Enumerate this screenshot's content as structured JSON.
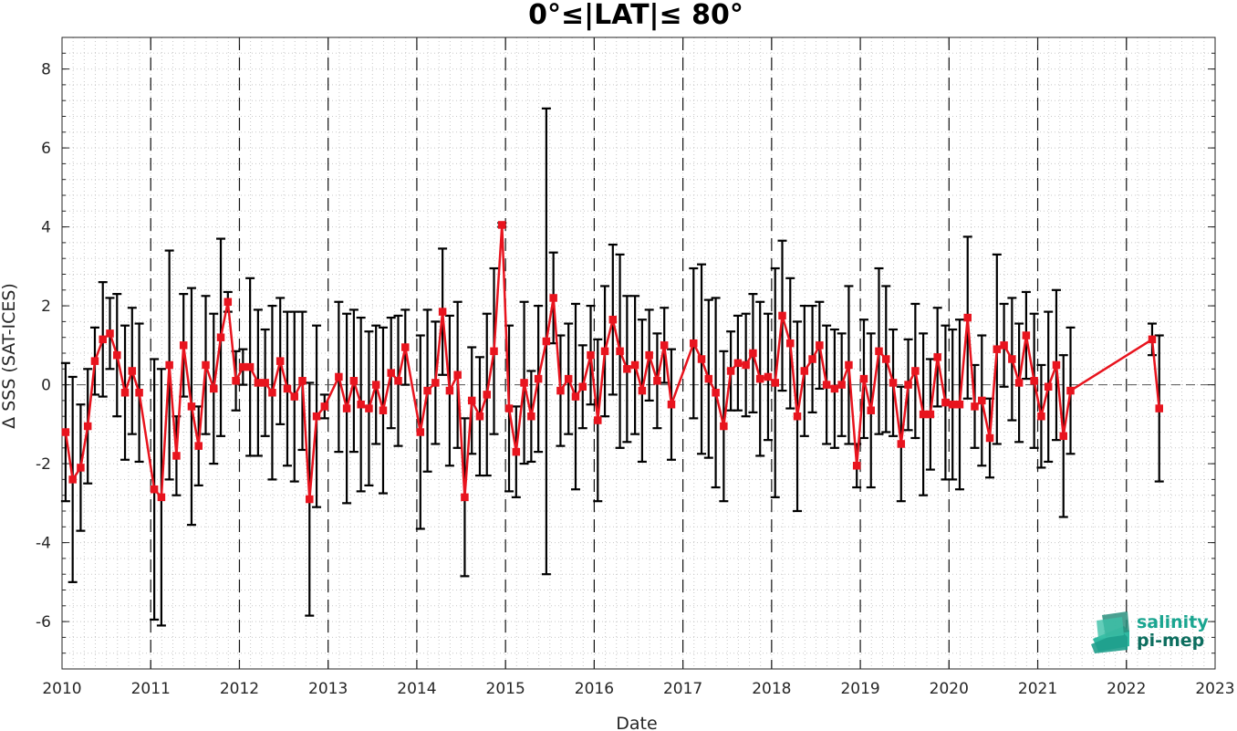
{
  "chart_data": {
    "type": "line",
    "title": "0°≤|LAT|≤ 80°",
    "xlabel": "Date",
    "ylabel": "Δ SSS (SAT-ICES)",
    "xlim": [
      2010,
      2023
    ],
    "ylim": [
      -7.2,
      8.8
    ],
    "xticks": [
      "2010",
      "2011",
      "2012",
      "2013",
      "2014",
      "2015",
      "2016",
      "2017",
      "2018",
      "2019",
      "2020",
      "2021",
      "2022",
      "2023"
    ],
    "yticks": [
      "-6",
      "-4",
      "-2",
      "0",
      "2",
      "4",
      "6",
      "8"
    ],
    "grid": "minor dotted",
    "reference_line": 0,
    "year_separators": "dashed vertical at each year",
    "series": [
      {
        "color": "#e8141e",
        "marker": "square",
        "error_bar_color": "#000000",
        "x": [
          2010.04,
          2010.12,
          2010.21,
          2010.29,
          2010.37,
          2010.46,
          2010.54,
          2010.62,
          2010.71,
          2010.79,
          2010.87,
          2011.04,
          2011.12,
          2011.21,
          2011.29,
          2011.37,
          2011.46,
          2011.54,
          2011.62,
          2011.71,
          2011.79,
          2011.87,
          2011.96,
          2012.04,
          2012.12,
          2012.21,
          2012.29,
          2012.37,
          2012.46,
          2012.54,
          2012.62,
          2012.71,
          2012.79,
          2012.87,
          2012.96,
          2013.12,
          2013.21,
          2013.29,
          2013.37,
          2013.46,
          2013.54,
          2013.62,
          2013.71,
          2013.79,
          2013.87,
          2014.04,
          2014.12,
          2014.21,
          2014.29,
          2014.37,
          2014.46,
          2014.54,
          2014.62,
          2014.71,
          2014.79,
          2014.87,
          2014.96,
          2015.04,
          2015.12,
          2015.21,
          2015.29,
          2015.37,
          2015.46,
          2015.54,
          2015.62,
          2015.71,
          2015.79,
          2015.87,
          2015.96,
          2016.04,
          2016.12,
          2016.21,
          2016.29,
          2016.37,
          2016.46,
          2016.54,
          2016.62,
          2016.71,
          2016.79,
          2016.87,
          2017.12,
          2017.21,
          2017.29,
          2017.37,
          2017.46,
          2017.54,
          2017.62,
          2017.71,
          2017.79,
          2017.87,
          2017.96,
          2018.04,
          2018.12,
          2018.21,
          2018.29,
          2018.37,
          2018.46,
          2018.54,
          2018.62,
          2018.71,
          2018.79,
          2018.87,
          2018.96,
          2019.04,
          2019.12,
          2019.21,
          2019.29,
          2019.37,
          2019.46,
          2019.54,
          2019.62,
          2019.71,
          2019.79,
          2019.87,
          2019.96,
          2020.04,
          2020.12,
          2020.21,
          2020.29,
          2020.37,
          2020.46,
          2020.54,
          2020.62,
          2020.71,
          2020.79,
          2020.87,
          2020.96,
          2021.04,
          2021.12,
          2021.21,
          2021.29,
          2021.37,
          2022.29,
          2022.37
        ],
        "y": [
          -1.2,
          -2.4,
          -2.1,
          -1.05,
          0.6,
          1.15,
          1.3,
          0.75,
          -0.2,
          0.35,
          -0.2,
          -2.65,
          -2.85,
          0.5,
          -1.8,
          1.0,
          -0.55,
          -1.55,
          0.5,
          -0.1,
          1.2,
          2.1,
          0.1,
          0.45,
          0.45,
          0.05,
          0.05,
          -0.2,
          0.6,
          -0.1,
          -0.3,
          0.1,
          -2.9,
          -0.8,
          -0.55,
          0.2,
          -0.6,
          0.1,
          -0.5,
          -0.6,
          0.0,
          -0.65,
          0.3,
          0.1,
          0.95,
          -1.2,
          -0.15,
          0.05,
          1.85,
          -0.15,
          0.25,
          -2.85,
          -0.4,
          -0.8,
          -0.25,
          0.85,
          4.05,
          -0.6,
          -1.7,
          0.05,
          -0.8,
          0.15,
          1.1,
          2.2,
          -0.15,
          0.15,
          -0.3,
          -0.05,
          0.75,
          -0.9,
          0.85,
          1.65,
          0.85,
          0.4,
          0.5,
          -0.15,
          0.75,
          0.1,
          1.0,
          -0.5,
          1.05,
          0.65,
          0.15,
          -0.2,
          -1.05,
          0.35,
          0.55,
          0.5,
          0.8,
          0.15,
          0.2,
          0.05,
          1.75,
          1.05,
          -0.8,
          0.35,
          0.65,
          1.0,
          0.0,
          -0.1,
          0.0,
          0.5,
          -2.05,
          0.15,
          -0.65,
          0.85,
          0.65,
          0.05,
          -1.5,
          0.0,
          0.35,
          -0.75,
          -0.75,
          0.7,
          -0.45,
          -0.5,
          -0.5,
          1.7,
          -0.55,
          -0.4,
          -1.35,
          0.9,
          1.0,
          0.65,
          0.05,
          1.25,
          0.1,
          -0.8,
          -0.05,
          0.5,
          -1.3,
          -0.15,
          1.15,
          -0.6
        ],
        "err": [
          1.75,
          2.6,
          1.6,
          1.45,
          0.85,
          1.45,
          0.9,
          1.55,
          1.7,
          1.6,
          1.75,
          3.3,
          3.25,
          2.9,
          1.0,
          1.3,
          3.0,
          1.0,
          1.75,
          1.9,
          2.5,
          0.25,
          0.75,
          0.45,
          2.25,
          1.85,
          1.35,
          2.2,
          1.6,
          1.95,
          2.15,
          1.75,
          2.95,
          2.3,
          0.3,
          1.9,
          2.4,
          1.8,
          2.2,
          1.95,
          1.5,
          2.1,
          1.4,
          1.65,
          0.95,
          2.45,
          2.05,
          1.55,
          1.6,
          1.9,
          1.85,
          2.0,
          1.35,
          1.5,
          2.05,
          2.1,
          0.05,
          2.1,
          1.15,
          2.05,
          1.15,
          1.85,
          5.9,
          1.15,
          1.4,
          1.4,
          2.35,
          1.05,
          1.25,
          2.05,
          1.65,
          1.9,
          2.45,
          1.85,
          1.75,
          1.8,
          1.15,
          1.2,
          0.95,
          1.4,
          1.9,
          2.4,
          2.0,
          2.4,
          1.9,
          1.0,
          1.2,
          1.3,
          1.5,
          1.95,
          1.6,
          2.9,
          1.9,
          1.65,
          2.4,
          1.65,
          1.35,
          1.1,
          1.5,
          1.5,
          1.3,
          2.0,
          0.55,
          1.5,
          1.95,
          2.1,
          1.85,
          1.35,
          1.45,
          1.15,
          1.7,
          2.05,
          1.4,
          1.25,
          1.95,
          1.9,
          2.15,
          2.05,
          1.05,
          1.65,
          1.0,
          2.4,
          1.05,
          1.55,
          1.5,
          1.1,
          1.7,
          1.3,
          1.9,
          1.9,
          2.05,
          1.6,
          0.4,
          1.85
        ]
      }
    ]
  },
  "logo": {
    "line1": "salinity",
    "line2": "pi-mep",
    "color": "#1aa590"
  }
}
